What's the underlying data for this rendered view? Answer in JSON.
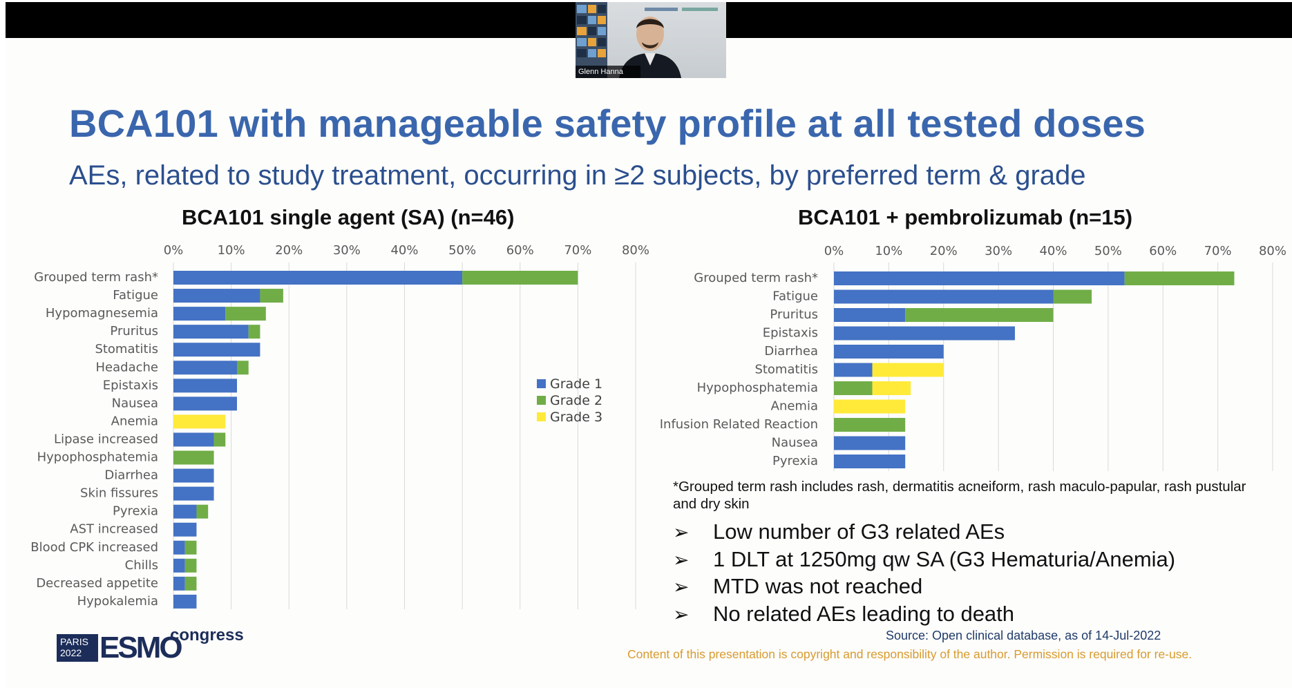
{
  "webcam": {
    "name": "Glenn Hanna"
  },
  "slide": {
    "title": "BCA101 with manageable safety profile at all tested doses",
    "subtitle": "AEs, related to study treatment, occurring in ≥2 subjects, by preferred term & grade",
    "footnote": "*Grouped term rash includes rash, dermatitis acneiform, rash maculo-papular, rash pustular and dry skin",
    "bullets": [
      "Low number of G3 related AEs",
      "1 DLT at 1250mg qw SA (G3 Hematuria/Anemia)",
      "MTD was not reached",
      "No related AEs leading to death"
    ],
    "bullet_arrow": "➢",
    "source": "Source: Open clinical database, as of 14-Jul-2022",
    "copyright": "Content of this presentation is copyright and responsibility of the author. Permission is required for re-use.",
    "logo": {
      "city": "PARIS",
      "year": "2022",
      "brand": "ESMO",
      "suffix": "congress"
    }
  },
  "colors": {
    "grade1": "#4472c4",
    "grade2": "#70ad47",
    "grade3": "#ffea3a",
    "title": "#3a66ad",
    "subtitle": "#2b4f8e"
  },
  "chart_data": [
    {
      "type": "bar",
      "orientation": "horizontal",
      "stacked": true,
      "title": "BCA101 single agent (SA) (n=46)",
      "xlim": [
        0,
        80
      ],
      "ticks": [
        "0%",
        "10%",
        "20%",
        "30%",
        "40%",
        "50%",
        "60%",
        "70%",
        "80%"
      ],
      "legend": "right",
      "grid": true,
      "categories": [
        "Grouped term rash*",
        "Fatigue",
        "Hypomagnesemia",
        "Pruritus",
        "Stomatitis",
        "Headache",
        "Epistaxis",
        "Nausea",
        "Anemia",
        "Lipase increased",
        "Hypophosphatemia",
        "Diarrhea",
        "Skin fissures",
        "Pyrexia",
        "AST increased",
        "Blood CPK increased",
        "Chills",
        "Decreased appetite",
        "Hypokalemia"
      ],
      "series": [
        {
          "name": "Grade 1",
          "values": [
            50,
            15,
            9,
            13,
            15,
            11,
            11,
            11,
            0,
            7,
            0,
            7,
            7,
            4,
            4,
            2,
            2,
            2,
            4
          ]
        },
        {
          "name": "Grade 2",
          "values": [
            20,
            4,
            7,
            2,
            0,
            2,
            0,
            0,
            0,
            2,
            7,
            0,
            0,
            2,
            0,
            2,
            2,
            2,
            0
          ]
        },
        {
          "name": "Grade 3",
          "values": [
            0,
            0,
            0,
            0,
            0,
            0,
            0,
            0,
            9,
            0,
            0,
            0,
            0,
            0,
            0,
            0,
            0,
            0,
            0
          ]
        }
      ]
    },
    {
      "type": "bar",
      "orientation": "horizontal",
      "stacked": true,
      "title": "BCA101 + pembrolizumab (n=15)",
      "xlim": [
        0,
        80
      ],
      "ticks": [
        "0%",
        "10%",
        "20%",
        "30%",
        "40%",
        "50%",
        "60%",
        "70%",
        "80%"
      ],
      "grid": true,
      "categories": [
        "Grouped term rash*",
        "Fatigue",
        "Pruritus",
        "Epistaxis",
        "Diarrhea",
        "Stomatitis",
        "Hypophosphatemia",
        "Anemia",
        "Infusion Related Reaction",
        "Nausea",
        "Pyrexia"
      ],
      "series": [
        {
          "name": "Grade 1",
          "values": [
            53,
            40,
            13,
            33,
            20,
            7,
            0,
            0,
            0,
            13,
            13
          ]
        },
        {
          "name": "Grade 2",
          "values": [
            20,
            7,
            27,
            0,
            0,
            0,
            7,
            0,
            13,
            0,
            0
          ]
        },
        {
          "name": "Grade 3",
          "values": [
            0,
            0,
            0,
            0,
            0,
            13,
            7,
            13,
            0,
            0,
            0
          ]
        }
      ]
    }
  ]
}
